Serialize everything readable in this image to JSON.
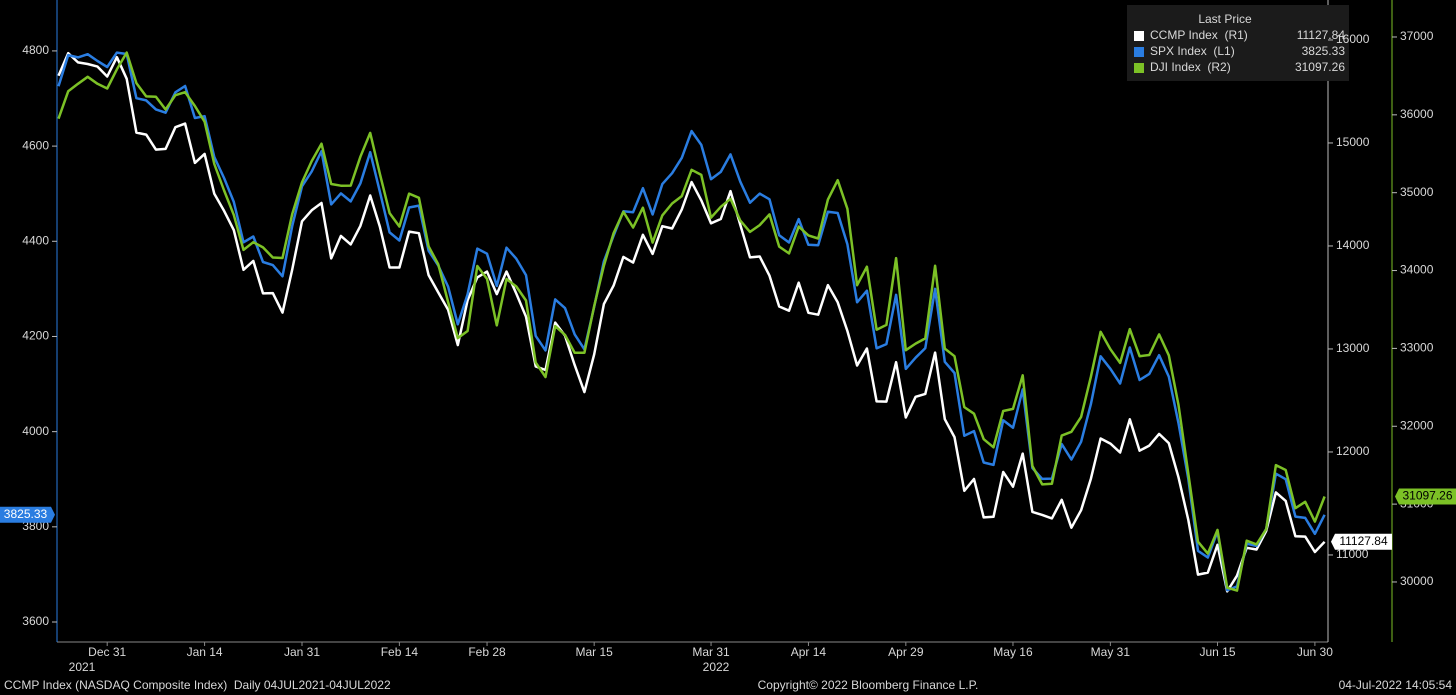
{
  "chart_data": {
    "type": "line",
    "categories": [
      null,
      null,
      null,
      null,
      null,
      "Dec 31",
      null,
      null,
      null,
      null,
      null,
      null,
      null,
      null,
      null,
      "Jan 14",
      null,
      null,
      null,
      null,
      null,
      null,
      null,
      null,
      null,
      "Jan 31",
      null,
      null,
      null,
      null,
      null,
      null,
      null,
      null,
      null,
      "Feb 14",
      null,
      null,
      null,
      null,
      null,
      null,
      null,
      null,
      "Feb 28",
      null,
      null,
      null,
      null,
      null,
      null,
      null,
      null,
      null,
      null,
      "Mar 15",
      null,
      null,
      null,
      null,
      null,
      null,
      null,
      null,
      null,
      null,
      null,
      "Mar 31",
      null,
      null,
      null,
      null,
      null,
      null,
      null,
      null,
      null,
      "Apr 14",
      null,
      null,
      null,
      null,
      null,
      null,
      null,
      null,
      null,
      "Apr 29",
      null,
      null,
      null,
      null,
      null,
      null,
      null,
      null,
      null,
      null,
      "May 16",
      null,
      null,
      null,
      null,
      null,
      null,
      null,
      null,
      null,
      "May 31",
      null,
      null,
      null,
      null,
      null,
      null,
      null,
      null,
      null,
      null,
      "Jun 15",
      null,
      null,
      null,
      null,
      null,
      null,
      null,
      null,
      null,
      "Jun 30",
      null
    ],
    "years": [
      "2021",
      "2022"
    ],
    "legend_title": "Last Price",
    "series": [
      {
        "name": "CCMP Index  (R1)",
        "color": "#ffffff",
        "axis": "y2",
        "values": [
          15653.37,
          15871.26,
          15781.72,
          15766.22,
          15741.56,
          15644.97,
          15832.8,
          15622.72,
          15100.17,
          15080.86,
          14935.9,
          14942.83,
          15153.45,
          15188.39,
          14806.81,
          14893.75,
          14506.9,
          14340.26,
          14154.02,
          13768.92,
          13855.13,
          13539.29,
          13542.12,
          13352.78,
          13770.57,
          14239.88,
          14346.0,
          14417.55,
          13878.82,
          14098.01,
          14015.67,
          14194.46,
          14490.37,
          14185.64,
          13791.15,
          13790.92,
          14139.76,
          14124.09,
          13716.72,
          13548.07,
          13381.52,
          13037.49,
          13473.59,
          13694.62,
          13751.4,
          13532.46,
          13752.02,
          13537.94,
          13313.44,
          12830.96,
          12795.55,
          13255.55,
          13129.96,
          12843.81,
          12581.22,
          12948.62,
          13436.55,
          13614.78,
          13893.84,
          13838.46,
          14108.82,
          13922.6,
          14191.84,
          14169.3,
          14354.9,
          14619.64,
          14442.28,
          14220.52,
          14261.5,
          14532.55,
          14204.17,
          13888.82,
          13897.3,
          13711.0,
          13411.96,
          13371.57,
          13643.59,
          13351.08,
          13332.36,
          13619.66,
          13453.07,
          13174.65,
          12839.29,
          13004.85,
          12490.74,
          12488.93,
          12871.53,
          12334.64,
          12536.02,
          12563.76,
          12964.86,
          12317.69,
          12144.66,
          11623.25,
          11737.67,
          11364.24,
          11370.96,
          11805.0,
          11662.79,
          11984.52,
          11418.15,
          11388.5,
          11354.62,
          11535.27,
          11264.45,
          11434.74,
          11740.65,
          12131.13,
          12081.39,
          11994.46,
          12316.9,
          12012.73,
          12061.37,
          12175.23,
          12086.27,
          11754.23,
          11340.02,
          10809.23,
          10828.35,
          11099.15,
          10646.1,
          10798.35,
          11069.3,
          11053.08,
          11232.19,
          11607.62,
          11524.55,
          11181.54,
          11177.89,
          11028.74,
          11127.84
        ]
      },
      {
        "name": "SPX Index  (L1)",
        "color": "#2a7de1",
        "axis": "y",
        "values": [
          4725.79,
          4791.19,
          4786.35,
          4793.06,
          4778.73,
          4766.18,
          4796.56,
          4793.54,
          4700.58,
          4696.05,
          4677.03,
          4670.29,
          4713.07,
          4726.35,
          4659.03,
          4662.85,
          4577.11,
          4532.76,
          4482.73,
          4397.94,
          4410.13,
          4356.45,
          4349.93,
          4326.51,
          4431.85,
          4515.55,
          4546.54,
          4589.38,
          4477.44,
          4500.53,
          4483.87,
          4521.54,
          4587.18,
          4504.08,
          4418.64,
          4401.67,
          4471.07,
          4475.01,
          4380.26,
          4348.87,
          4304.76,
          4225.5,
          4288.7,
          4384.65,
          4373.94,
          4306.26,
          4386.54,
          4363.49,
          4328.87,
          4201.09,
          4170.7,
          4277.88,
          4259.52,
          4204.31,
          4173.11,
          4262.45,
          4357.86,
          4411.67,
          4463.12,
          4461.18,
          4511.61,
          4456.24,
          4520.16,
          4543.06,
          4575.52,
          4631.6,
          4602.45,
          4530.41,
          4545.86,
          4582.64,
          4525.12,
          4481.15,
          4500.21,
          4488.28,
          4412.53,
          4397.45,
          4446.59,
          4392.59,
          4391.69,
          4462.21,
          4459.45,
          4393.66,
          4271.78,
          4296.12,
          4175.2,
          4183.96,
          4287.5,
          4131.93,
          4155.38,
          4175.48,
          4300.17,
          4146.87,
          4123.34,
          3991.24,
          4001.05,
          3935.18,
          3930.08,
          4023.89,
          4008.01,
          4088.85,
          3923.68,
          3900.79,
          3901.36,
          3973.75,
          3941.48,
          3978.73,
          4057.84,
          4158.24,
          4132.15,
          4101.23,
          4176.82,
          4108.54,
          4121.43,
          4160.68,
          4115.77,
          4017.82,
          3900.86,
          3749.63,
          3735.48,
          3789.99,
          3666.77,
          3674.84,
          3764.79,
          3759.89,
          3795.73,
          3911.74,
          3900.11,
          3821.55,
          3818.83,
          3785.38,
          3825.33
        ]
      },
      {
        "name": "DJI Index  (R2)",
        "color": "#7cc126",
        "axis": "y3",
        "values": [
          35950.56,
          36302.38,
          36398.21,
          36488.63,
          36398.08,
          36338.3,
          36585.06,
          36799.65,
          36407.11,
          36236.47,
          36231.66,
          36068.87,
          36252.02,
          36290.32,
          36113.62,
          35911.81,
          35368.47,
          35028.65,
          34715.39,
          34265.37,
          34364.5,
          34297.73,
          34168.09,
          34160.78,
          34725.47,
          35131.86,
          35405.24,
          35629.33,
          35111.16,
          35089.74,
          35091.13,
          35462.78,
          35768.06,
          35241.59,
          34738.06,
          34566.17,
          34988.84,
          34934.27,
          34312.03,
          34079.18,
          33596.61,
          33131.76,
          33223.83,
          34058.75,
          33892.6,
          33294.95,
          33891.35,
          33794.66,
          33614.8,
          32817.38,
          32632.64,
          33286.25,
          33174.07,
          32944.19,
          32945.24,
          33544.34,
          34063.1,
          34480.76,
          34754.93,
          34552.99,
          34807.46,
          34358.5,
          34707.94,
          34861.24,
          34955.89,
          35294.19,
          35228.81,
          34678.35,
          34818.27,
          34921.88,
          34641.18,
          34496.51,
          34583.57,
          34721.12,
          34308.08,
          34220.36,
          34564.59,
          34451.23,
          34411.69,
          34911.2,
          35160.79,
          34792.76,
          33811.4,
          34049.46,
          33240.18,
          33301.93,
          34160.26,
          32977.21,
          33061.5,
          33128.79,
          34061.06,
          32997.97,
          32899.37,
          32245.7,
          32160.74,
          31834.11,
          31730.3,
          32196.66,
          32223.42,
          32654.59,
          31490.07,
          31253.13,
          31261.9,
          31880.24,
          31928.62,
          32120.28,
          32637.19,
          33212.96,
          32990.12,
          32813.23,
          33248.28,
          32899.7,
          32915.78,
          33180.14,
          32910.9,
          32272.79,
          31392.79,
          30516.74,
          30364.83,
          30668.53,
          29927.07,
          29888.78,
          30530.25,
          30483.13,
          30677.36,
          31500.68,
          31438.26,
          30946.99,
          31029.31,
          30775.43,
          31097.26
        ]
      }
    ],
    "ylim": [
      3558,
      4907
    ],
    "yticks": [
      3600,
      3800,
      4000,
      4200,
      4400,
      4600,
      4800
    ],
    "y2lim": [
      10155,
      16388
    ],
    "y2ticks": [
      11000,
      12000,
      13000,
      14000,
      15000,
      16000
    ],
    "y3lim": [
      29229,
      37475
    ],
    "y3ticks": [
      30000,
      31000,
      32000,
      33000,
      34000,
      35000,
      36000,
      37000
    ],
    "grid": false,
    "footer": {
      "left": "CCMP Index (NASDAQ Composite Index)  Daily 04JUL2021-04JUL2022",
      "center": "Copyright© 2022 Bloomberg Finance L.P.",
      "right": "04-Jul-2022 14:05:54"
    }
  }
}
